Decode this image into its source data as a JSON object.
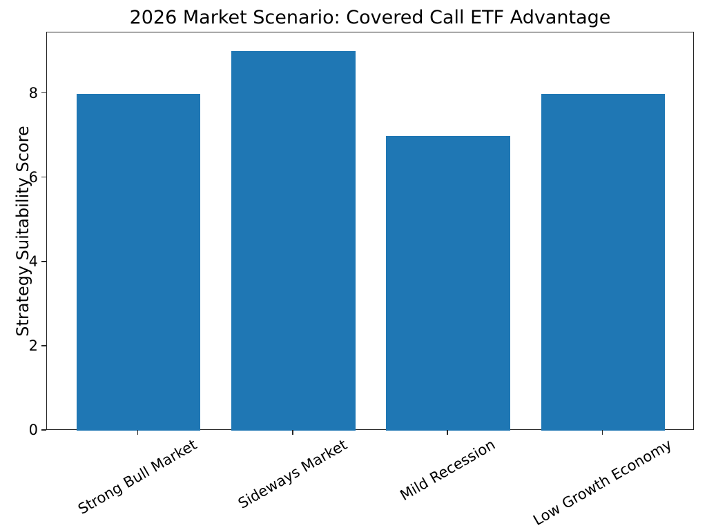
{
  "chart_data": {
    "type": "bar",
    "title": "2026 Market Scenario: Covered Call ETF Advantage",
    "categories": [
      "Strong Bull Market",
      "Sideways Market",
      "Mild Recession",
      "Low Growth Economy"
    ],
    "values": [
      8,
      9,
      7,
      8
    ],
    "xlabel": "",
    "ylabel": "Strategy Suitability Score",
    "ylim": [
      0,
      9.45
    ],
    "xlim": [
      -0.59,
      3.59
    ],
    "yticks": [
      0,
      2,
      4,
      6,
      8
    ],
    "bar_color": "#1f77b4",
    "bar_width_fraction": 0.8,
    "xtick_label_rotation_deg": 30,
    "grid": false,
    "legend": "none",
    "spine_color": "#262626",
    "background_color": "#ffffff"
  }
}
